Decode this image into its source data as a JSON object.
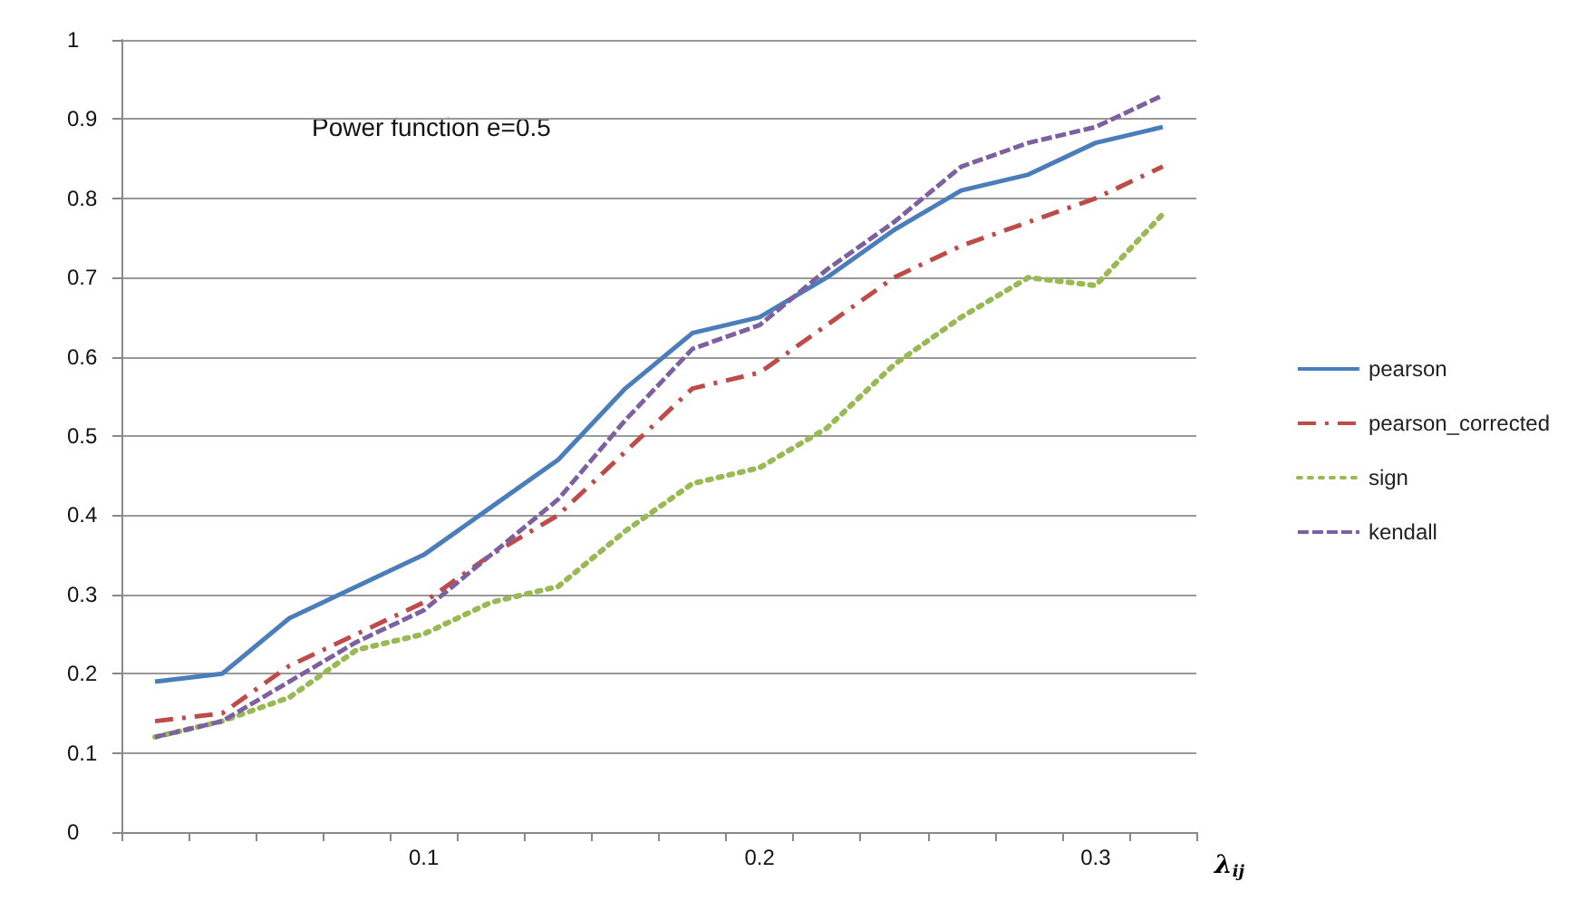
{
  "chart_data": {
    "type": "line",
    "xlabel": "λ$_{ij}$",
    "categories": [
      null,
      null,
      null,
      null,
      "0.1",
      null,
      null,
      null,
      null,
      "0.2",
      null,
      null,
      null,
      null,
      "0.3",
      null
    ],
    "series": [
      {
        "name": "pearson",
        "color": "#4a7ebb",
        "line_style": "solid",
        "values": [
          0.19,
          0.2,
          0.27,
          0.31,
          0.35,
          0.41,
          0.47,
          0.56,
          0.63,
          0.65,
          0.7,
          0.76,
          0.81,
          0.83,
          0.87,
          0.89
        ]
      },
      {
        "name": "pearson_corrected",
        "color": "#be4b48",
        "line_style": "dashdot",
        "values": [
          0.14,
          0.15,
          0.21,
          0.25,
          0.29,
          0.35,
          0.4,
          0.48,
          0.56,
          0.58,
          0.64,
          0.7,
          0.74,
          0.77,
          0.8,
          0.84
        ]
      },
      {
        "name": "sign",
        "color": "#98b954",
        "line_style": "dotted",
        "values": [
          0.12,
          0.14,
          0.17,
          0.23,
          0.25,
          0.29,
          0.31,
          0.38,
          0.44,
          0.46,
          0.51,
          0.59,
          0.65,
          0.7,
          0.69,
          0.78
        ]
      },
      {
        "name": "kendall",
        "color": "#7d60a0",
        "line_style": "dashed",
        "values": [
          0.12,
          0.14,
          0.19,
          0.24,
          0.28,
          0.35,
          0.42,
          0.52,
          0.61,
          0.64,
          0.71,
          0.77,
          0.84,
          0.87,
          0.89,
          0.93
        ]
      }
    ],
    "ylim": [
      0,
      1
    ],
    "yticks": [
      0,
      0.1,
      0.2,
      0.3,
      0.4,
      0.5,
      0.6,
      0.7,
      0.8,
      0.9,
      1
    ],
    "grid": "y",
    "legend": "right",
    "marker": "none",
    "annotations": [
      "Power function e=0.5"
    ]
  }
}
